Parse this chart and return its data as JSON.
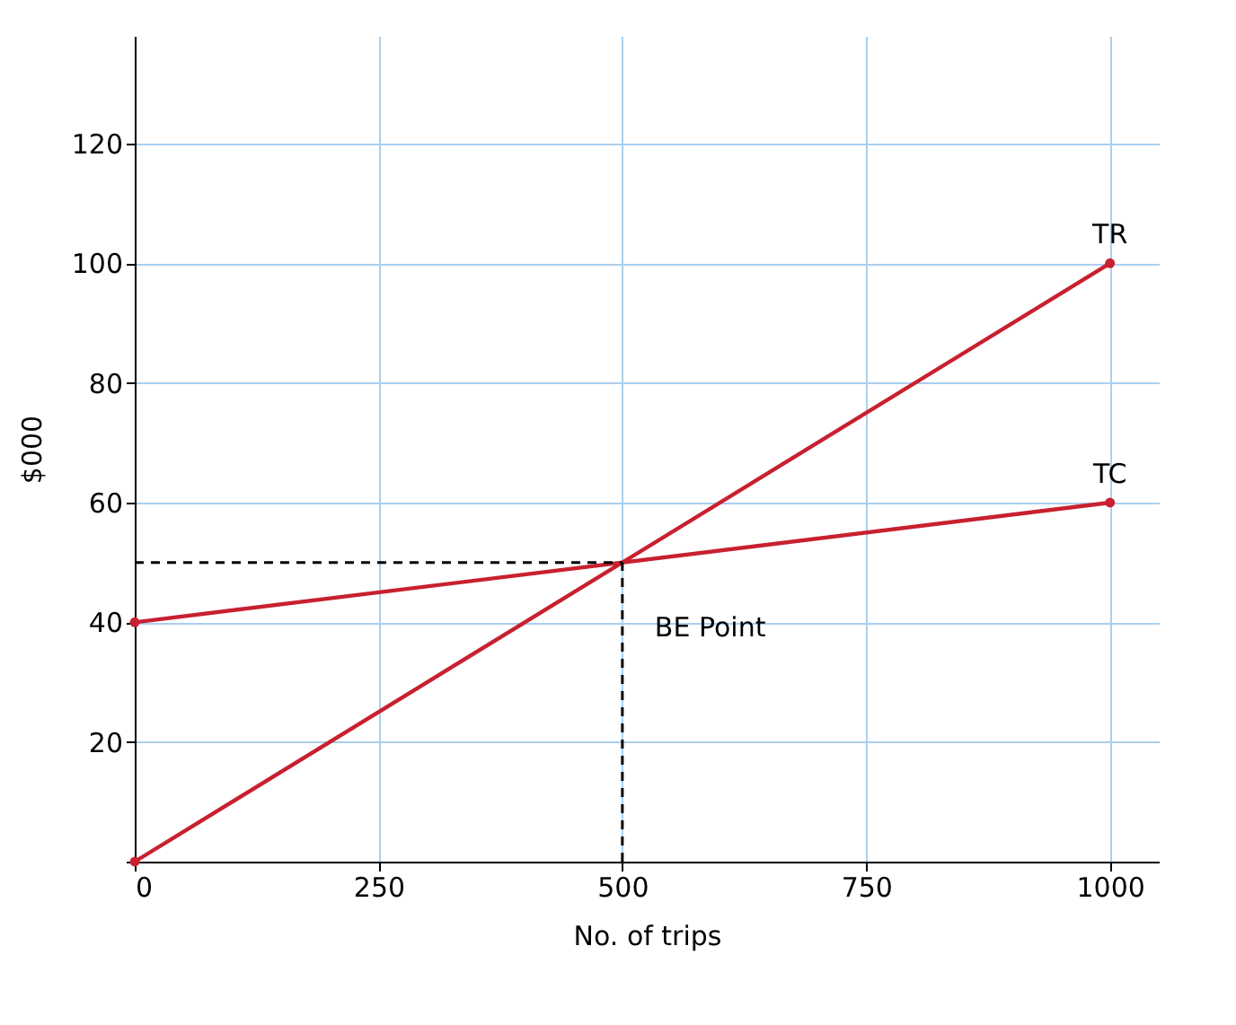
{
  "chart_data": {
    "type": "line",
    "xlabel": "No. of trips",
    "ylabel": "$000",
    "x": [
      0,
      1000
    ],
    "series": [
      {
        "name": "TR",
        "color": "#c8202f",
        "values": [
          0,
          100
        ]
      },
      {
        "name": "TC",
        "color": "#c8202f",
        "values": [
          40,
          60
        ]
      }
    ],
    "xlim": [
      0,
      1050
    ],
    "ylim": [
      0,
      138
    ],
    "xticks": [
      0,
      250,
      500,
      750,
      1000
    ],
    "yticks": [
      {
        "value": 0,
        "label": null
      },
      20,
      40,
      60,
      80,
      100,
      120
    ],
    "ref_lines": [
      {
        "axis": "y",
        "value": 50,
        "color": "#000000",
        "line_style": "dashed"
      },
      {
        "axis": "x",
        "value": 500,
        "color": "#000000",
        "line_style": "dashed"
      }
    ],
    "annotations": [
      {
        "text": "BE Point",
        "x": 500,
        "y": 50
      }
    ],
    "grid": true,
    "marker": "circle",
    "line_style": "solid"
  }
}
